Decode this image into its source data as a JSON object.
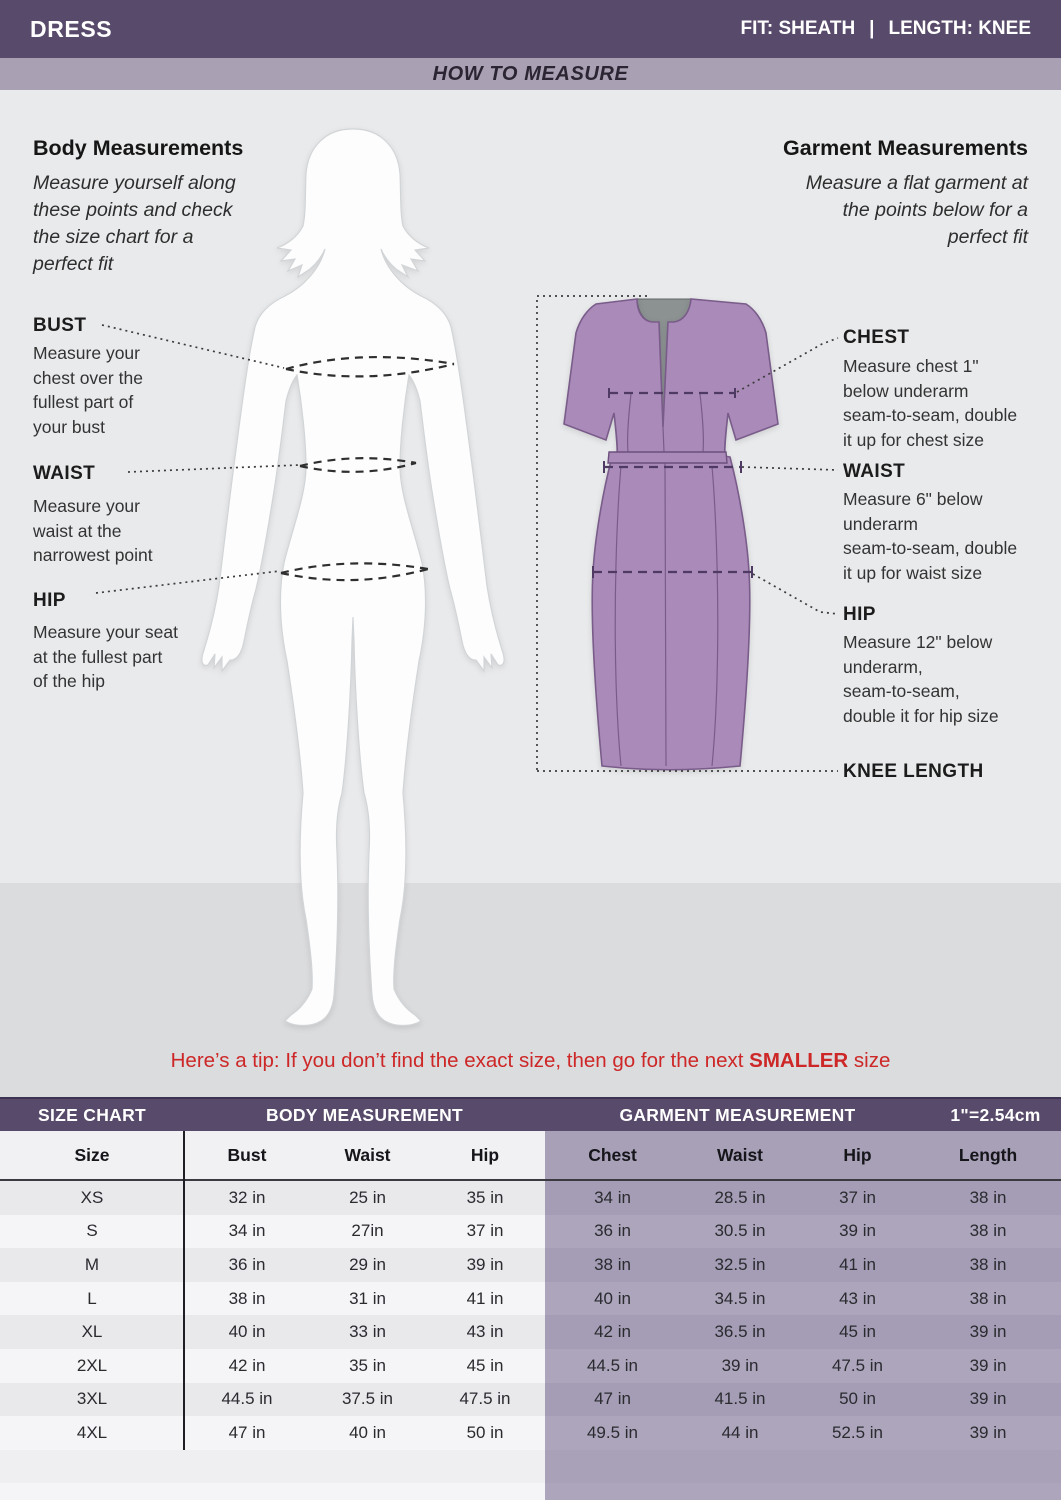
{
  "header": {
    "title": "DRESS",
    "fit": "FIT: SHEATH",
    "separator": "|",
    "length": "LENGTH: KNEE"
  },
  "subheader": {
    "title": "HOW TO MEASURE"
  },
  "body_measurements": {
    "title": "Body Measurements",
    "intro": "Measure yourself along\nthese points and check\nthe size chart for a\nperfect fit",
    "sections": [
      {
        "label": "BUST",
        "description": "Measure your\nchest over the\nfullest part of\nyour bust"
      },
      {
        "label": "WAIST",
        "description": "Measure your\nwaist at the\nnarrowest point"
      },
      {
        "label": "HIP",
        "description": "Measure your seat\nat the fullest part\nof the hip"
      }
    ]
  },
  "garment_measurements": {
    "title": "Garment Measurements",
    "intro": "Measure a flat garment at\nthe points below for a\nperfect fit",
    "sections": [
      {
        "label": "CHEST",
        "description": "Measure chest 1\"\nbelow underarm\nseam-to-seam, double\nit up for chest size"
      },
      {
        "label": "WAIST",
        "description": "Measure 6\" below\nunderarm\nseam-to-seam, double\nit up for waist size"
      },
      {
        "label": "HIP",
        "description": "Measure 12\" below\nunderarm,\nseam-to-seam,\ndouble it for hip size"
      },
      {
        "label": "KNEE LENGTH",
        "description": ""
      }
    ]
  },
  "tip": {
    "prefix": "Here’s a tip: If you don’t find the exact size, then go for the next ",
    "bold": "SMALLER",
    "suffix": " size"
  },
  "size_chart": {
    "band_labels": [
      "SIZE CHART",
      "BODY MEASUREMENT",
      "GARMENT MEASUREMENT",
      "1\"=2.54cm"
    ],
    "columns": [
      "Size",
      "Bust",
      "Waist",
      "Hip",
      "Chest",
      "Waist",
      "Hip",
      "Length"
    ],
    "rows": [
      [
        "XS",
        "32 in",
        "25 in",
        "35 in",
        "34 in",
        "28.5 in",
        "37 in",
        "38 in"
      ],
      [
        "S",
        "34 in",
        "27in",
        "37 in",
        "36 in",
        "30.5 in",
        "39 in",
        "38 in"
      ],
      [
        "M",
        "36 in",
        "29 in",
        "39 in",
        "38 in",
        "32.5 in",
        "41 in",
        "38 in"
      ],
      [
        "L",
        "38 in",
        "31 in",
        "41 in",
        "40 in",
        "34.5 in",
        "43 in",
        "38 in"
      ],
      [
        "XL",
        "40 in",
        "33 in",
        "43 in",
        "42 in",
        "36.5 in",
        "45 in",
        "39 in"
      ],
      [
        "2XL",
        "42 in",
        "35 in",
        "45 in",
        "44.5 in",
        "39 in",
        "47.5 in",
        "39 in"
      ],
      [
        "3XL",
        "44.5 in",
        "37.5 in",
        "47.5 in",
        "47 in",
        "41.5 in",
        "50 in",
        "39 in"
      ],
      [
        "4XL",
        "47 in",
        "40 in",
        "50 in",
        "49.5 in",
        "44 in",
        "52.5 in",
        "39 in"
      ]
    ]
  },
  "colors": {
    "header_bg": "#584A6A",
    "subheader_bg": "#A9A1B3",
    "dress_fill": "#A98AB8",
    "dress_outline": "#7A5C8A",
    "tip_red": "#CD2727",
    "table_right_bg": "#ACA5BC"
  }
}
